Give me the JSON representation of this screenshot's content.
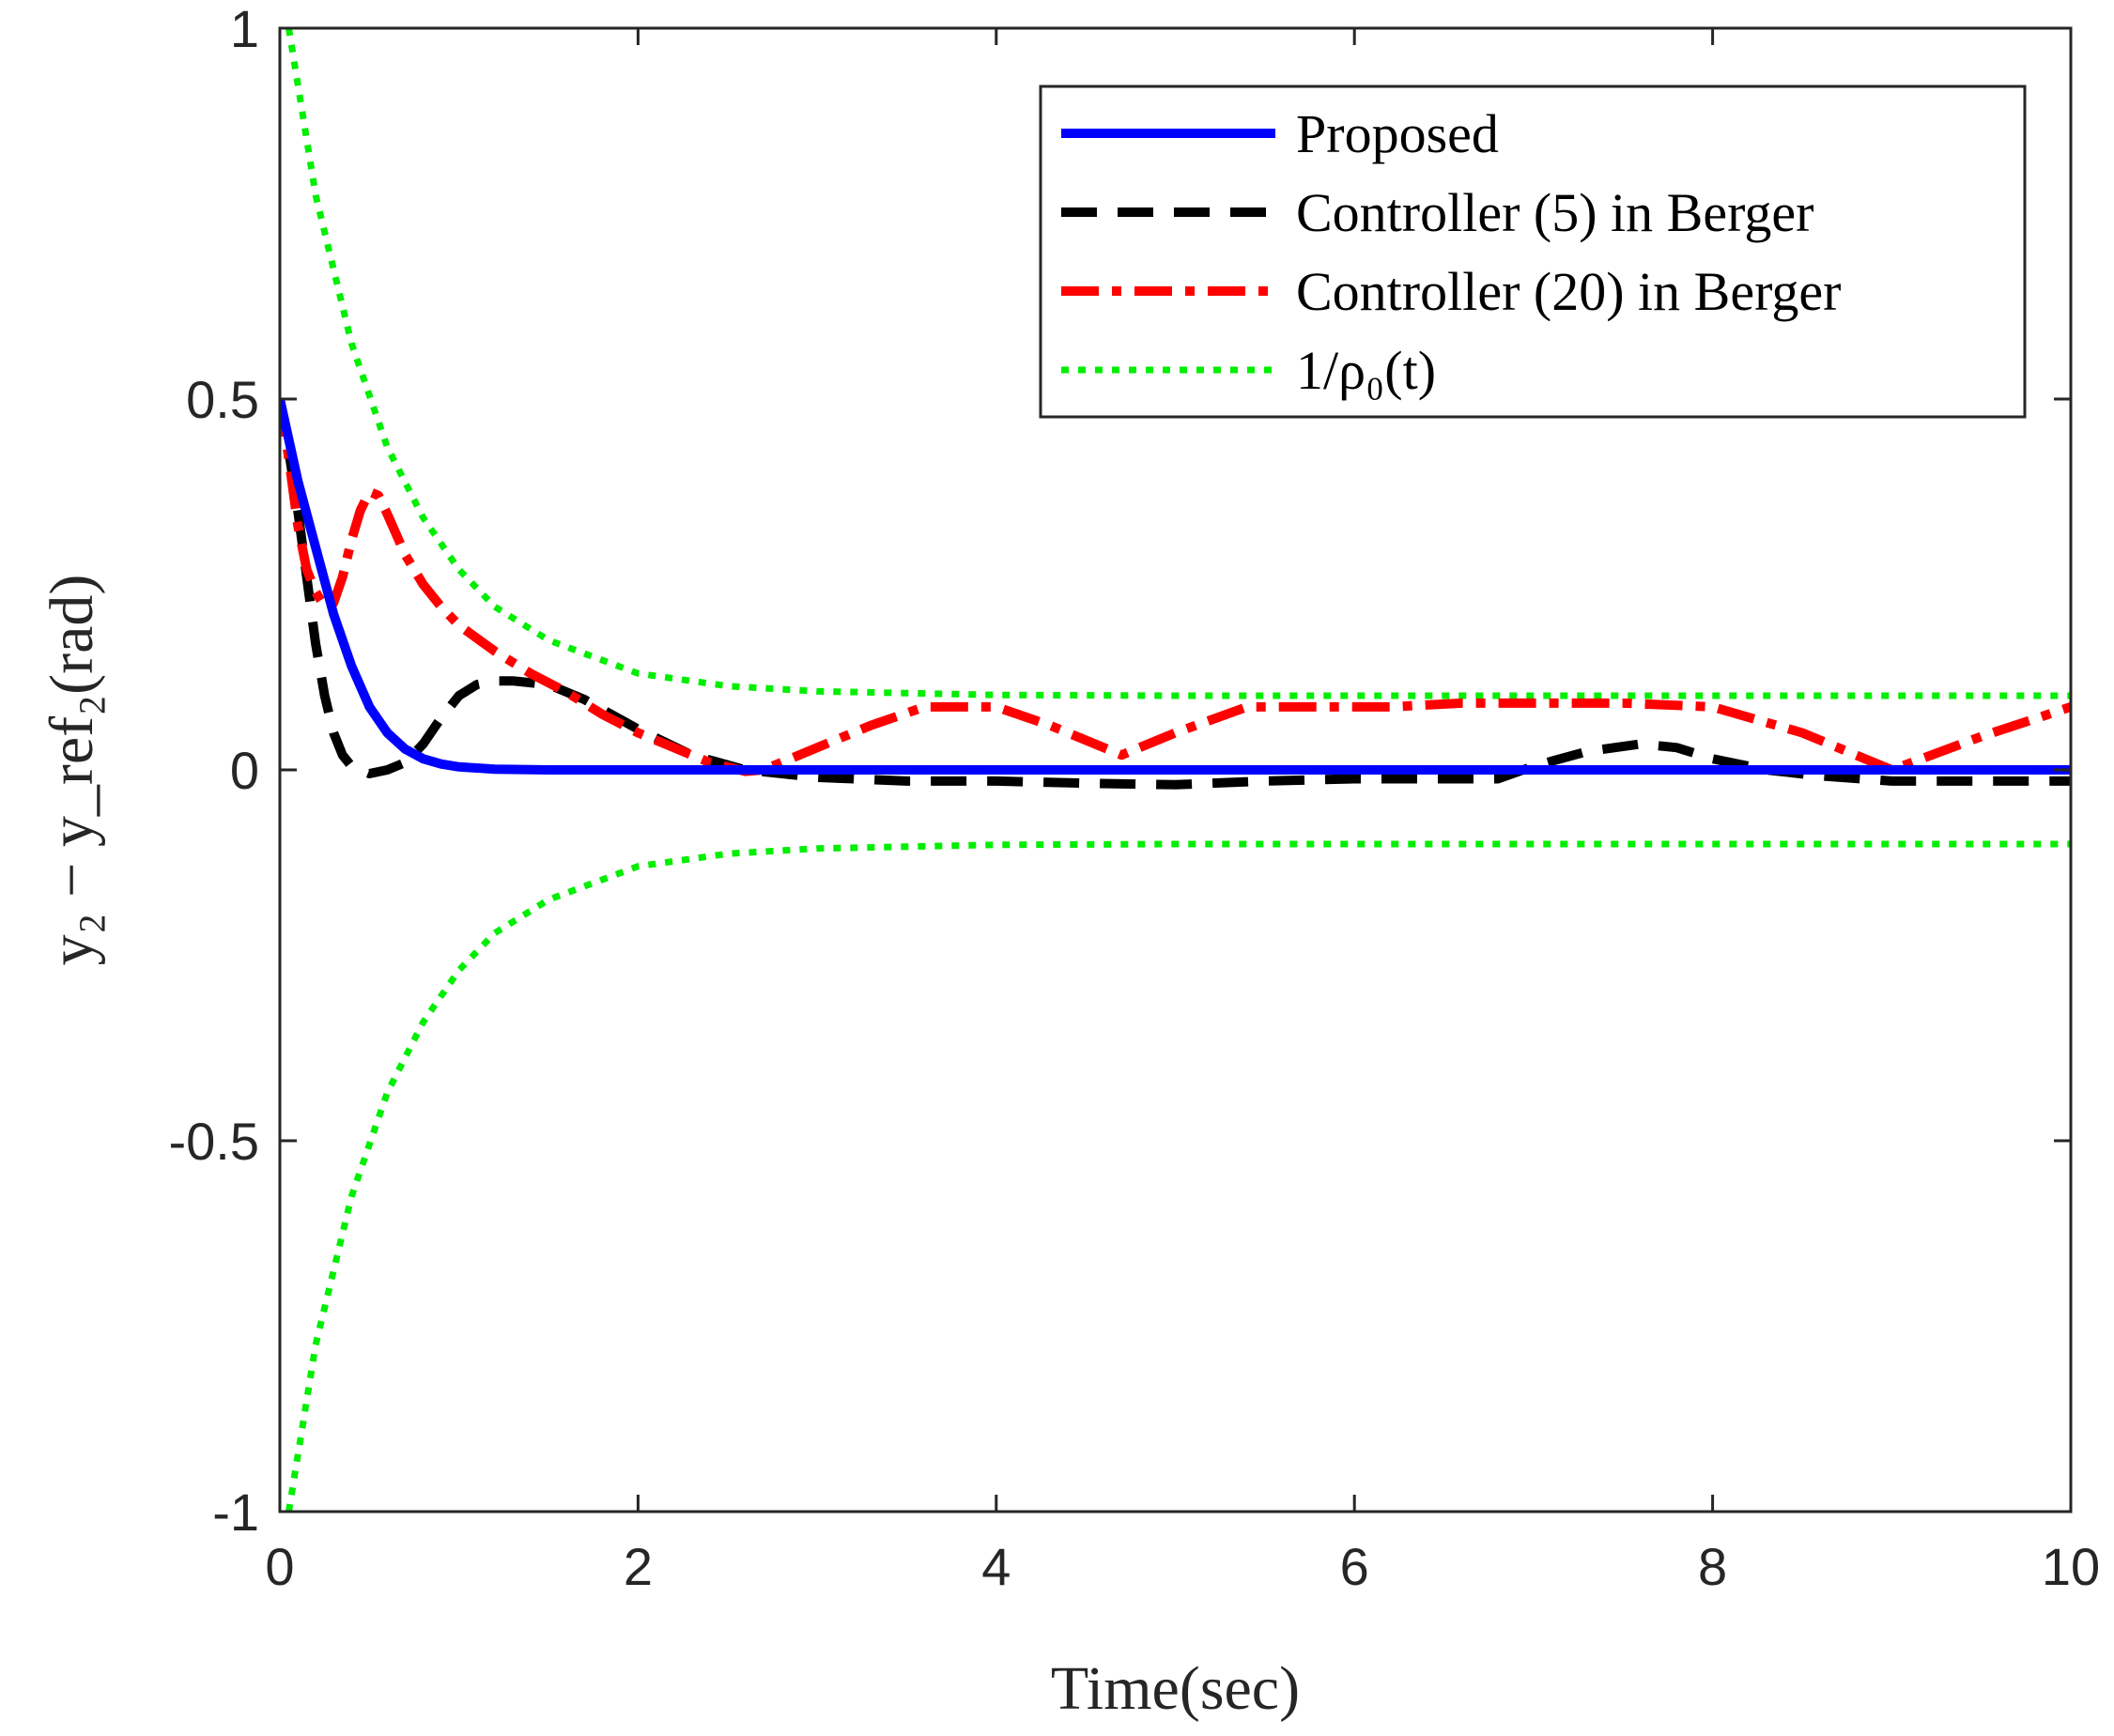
{
  "chart_data": {
    "type": "line",
    "title": "",
    "xlabel": "Time(sec)",
    "ylabel": "y₂ − y_ref₂(rad)",
    "xlim": [
      0,
      10
    ],
    "ylim": [
      -1,
      1
    ],
    "xticks": [
      0,
      2,
      4,
      6,
      8,
      10
    ],
    "xtick_labels": [
      "0",
      "2",
      "4",
      "6",
      "8",
      "10"
    ],
    "yticks": [
      -1,
      -0.5,
      0,
      0.5,
      1
    ],
    "ytick_labels": [
      "-1",
      "-0.5",
      "0",
      "0.5",
      "1"
    ],
    "grid": false,
    "legend_position": "top-right",
    "series": [
      {
        "name": "Proposed",
        "color": "#0000ff",
        "style": "solid",
        "x": [
          0,
          0.1,
          0.2,
          0.3,
          0.4,
          0.5,
          0.6,
          0.7,
          0.8,
          0.9,
          1.0,
          1.2,
          1.5,
          2,
          3,
          4,
          5,
          6,
          7,
          8,
          9,
          10
        ],
        "y": [
          0.5,
          0.39,
          0.3,
          0.21,
          0.14,
          0.085,
          0.05,
          0.028,
          0.015,
          0.008,
          0.004,
          0.001,
          0,
          0,
          0,
          0,
          0,
          0,
          0,
          0,
          0,
          0
        ]
      },
      {
        "name": "Controller (5) in Berger",
        "color": "#000000",
        "style": "dashed",
        "x": [
          0,
          0.05,
          0.1,
          0.15,
          0.2,
          0.25,
          0.3,
          0.35,
          0.4,
          0.5,
          0.6,
          0.7,
          0.8,
          0.9,
          1.0,
          1.1,
          1.2,
          1.3,
          1.5,
          1.7,
          2.0,
          2.3,
          2.6,
          3.0,
          3.5,
          4.0,
          4.5,
          5.0,
          5.5,
          6.0,
          6.5,
          6.8,
          7.0,
          7.3,
          7.6,
          7.8,
          8.0,
          8.3,
          8.6,
          9.0,
          9.5,
          10
        ],
        "y": [
          0.5,
          0.43,
          0.35,
          0.26,
          0.17,
          0.1,
          0.05,
          0.02,
          0.005,
          -0.005,
          0.0,
          0.01,
          0.035,
          0.07,
          0.1,
          0.115,
          0.12,
          0.12,
          0.115,
          0.095,
          0.055,
          0.02,
          0.0,
          -0.01,
          -0.015,
          -0.015,
          -0.018,
          -0.02,
          -0.015,
          -0.012,
          -0.012,
          -0.012,
          0.005,
          0.025,
          0.035,
          0.03,
          0.015,
          0.0,
          -0.008,
          -0.015,
          -0.015,
          -0.015
        ]
      },
      {
        "name": "Controller (20) in Berger",
        "color": "#ff0000",
        "style": "dashdot",
        "x": [
          0,
          0.05,
          0.1,
          0.15,
          0.2,
          0.25,
          0.3,
          0.35,
          0.4,
          0.45,
          0.5,
          0.55,
          0.6,
          0.7,
          0.8,
          0.9,
          1.0,
          1.2,
          1.4,
          1.6,
          1.8,
          2.0,
          2.2,
          2.4,
          2.6,
          2.7,
          3.0,
          3.3,
          3.6,
          4.0,
          4.3,
          4.7,
          5.0,
          5.4,
          5.8,
          6.2,
          6.6,
          7.0,
          7.5,
          8.0,
          8.5,
          9.0,
          9.5,
          10
        ],
        "y": [
          0.5,
          0.42,
          0.33,
          0.27,
          0.24,
          0.22,
          0.225,
          0.26,
          0.31,
          0.35,
          0.375,
          0.37,
          0.345,
          0.29,
          0.25,
          0.22,
          0.195,
          0.16,
          0.13,
          0.105,
          0.075,
          0.05,
          0.03,
          0.01,
          -0.002,
          0.0,
          0.03,
          0.06,
          0.085,
          0.085,
          0.06,
          0.02,
          0.05,
          0.085,
          0.085,
          0.085,
          0.09,
          0.09,
          0.09,
          0.085,
          0.05,
          0.0,
          0.045,
          0.085
        ]
      },
      {
        "name": "1/ρ₀(t)",
        "color": "#00ee00",
        "style": "dotted",
        "mirrored_negative": true,
        "x": [
          0.05,
          0.2,
          0.4,
          0.6,
          0.8,
          1.0,
          1.2,
          1.5,
          2.0,
          2.5,
          3.0,
          4.0,
          5.0,
          6.0,
          7.0,
          8.0,
          9.0,
          10.0
        ],
        "y": [
          1.0,
          0.775,
          0.575,
          0.435,
          0.34,
          0.27,
          0.22,
          0.175,
          0.13,
          0.113,
          0.106,
          0.101,
          0.1,
          0.1,
          0.1,
          0.1,
          0.1,
          0.1
        ]
      }
    ]
  },
  "legend": {
    "entries": [
      {
        "label": "Proposed",
        "color": "#0000ff",
        "style": "solid"
      },
      {
        "label": "Controller (5) in Berger",
        "color": "#000000",
        "style": "dashed"
      },
      {
        "label": "Controller (20) in Berger",
        "color": "#ff0000",
        "style": "dashdot"
      },
      {
        "label": "1/ρ₀(t)",
        "color": "#00ee00",
        "style": "dotted"
      }
    ]
  }
}
